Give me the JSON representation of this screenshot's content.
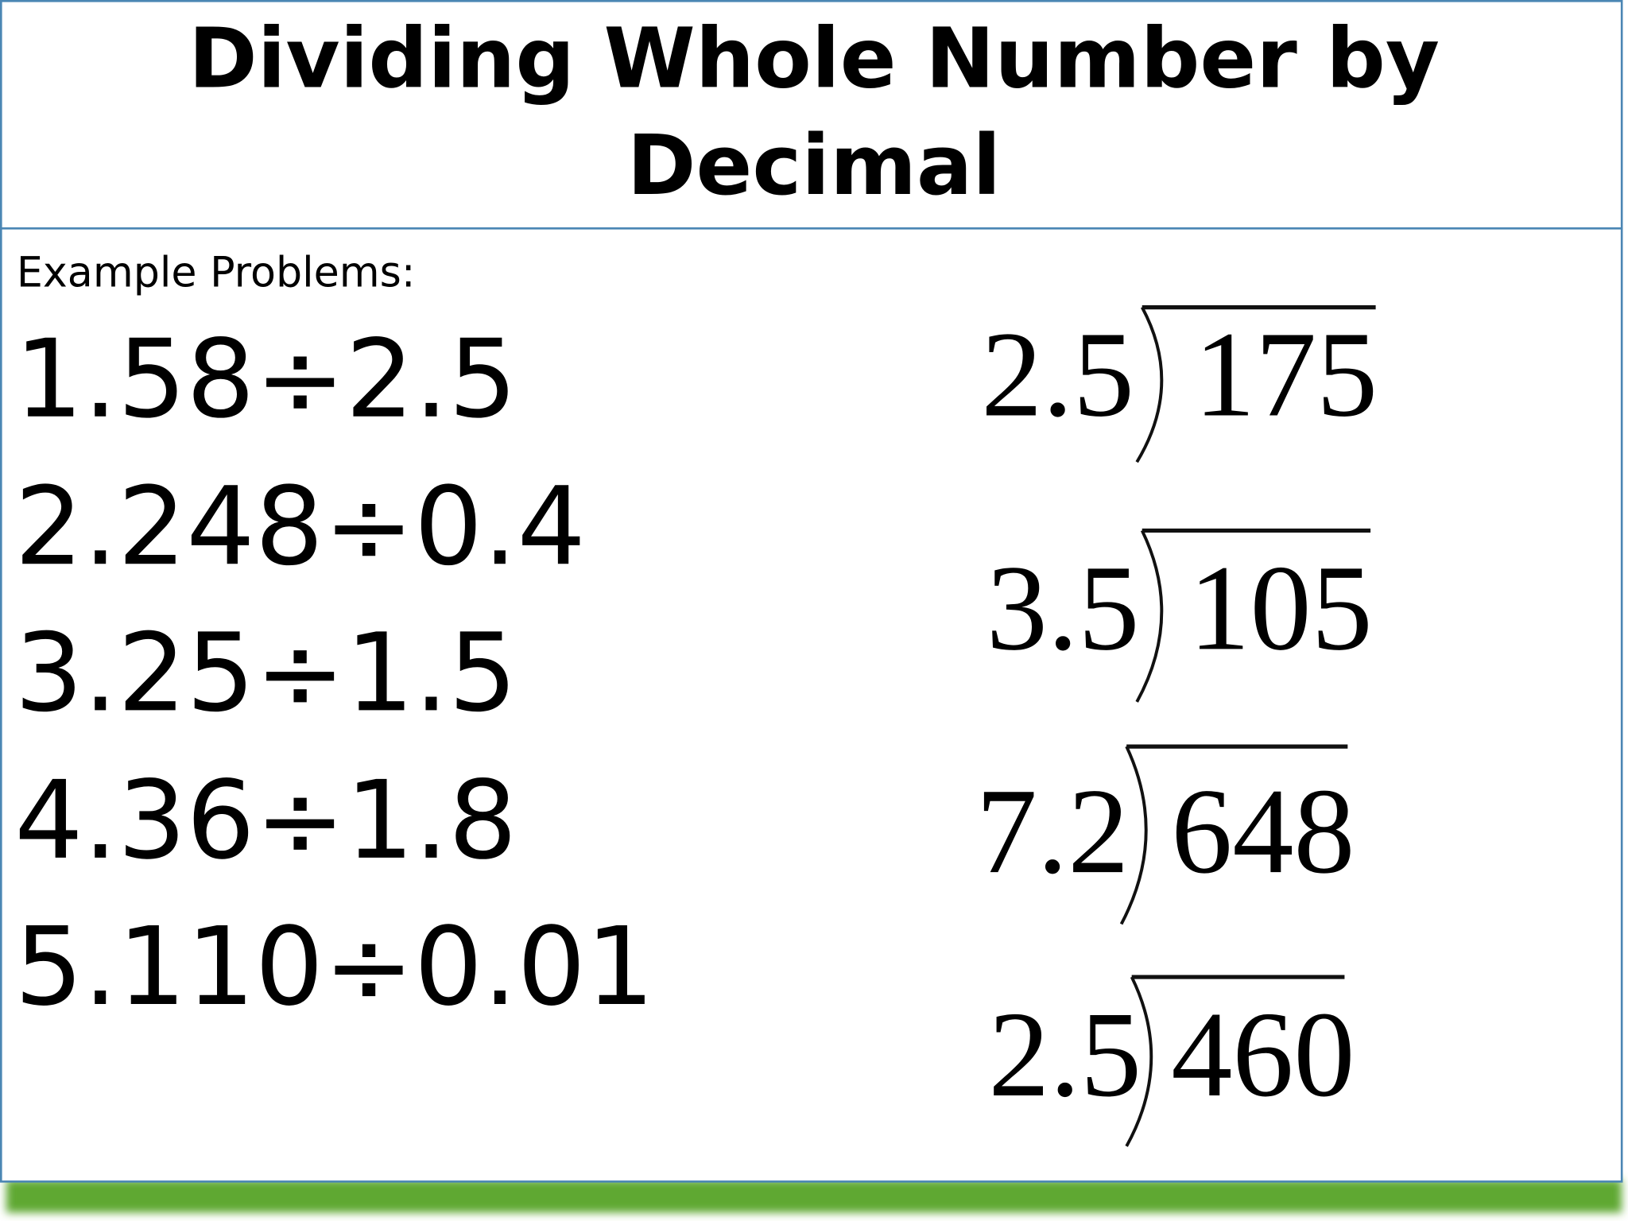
{
  "header": {
    "title": "Dividing Whole Number by Decimal"
  },
  "body": {
    "subtitle": "Example Problems:",
    "problems": [
      "1.58÷2.5",
      "2.248÷0.4",
      "3.25÷1.5",
      "4.36÷1.8",
      "5.110÷0.01"
    ],
    "divisions": [
      {
        "divisor": "2.5",
        "dividend": "175"
      },
      {
        "divisor": "3.5",
        "dividend": "105"
      },
      {
        "divisor": "7.2",
        "dividend": "648"
      },
      {
        "divisor": "2.5",
        "dividend": "460"
      }
    ]
  }
}
